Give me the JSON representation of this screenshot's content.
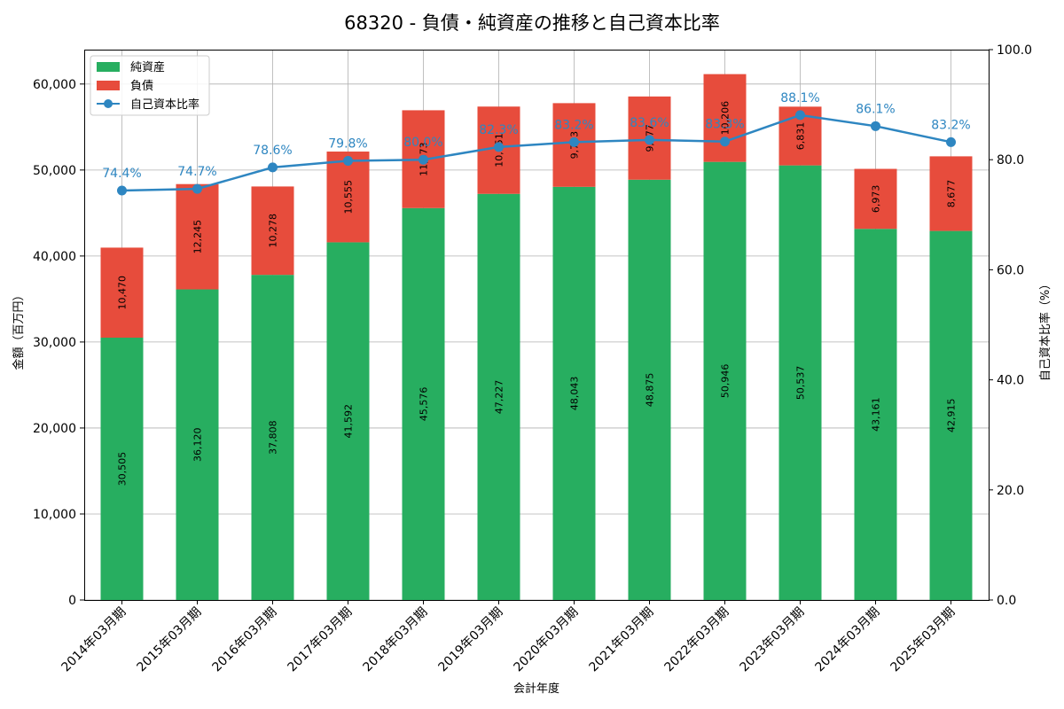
{
  "chart_data": {
    "type": "bar",
    "stacked": true,
    "title": "68320 - 負債・純資産の推移と自己資本比率",
    "xlabel": "会計年度",
    "ylabel": "金額（百万円）",
    "y2label": "自己資本比率（%）",
    "ylim": [
      0,
      64000
    ],
    "y2lim": [
      0,
      100
    ],
    "yticks": [
      0,
      10000,
      20000,
      30000,
      40000,
      50000,
      60000
    ],
    "ytick_labels": [
      "0",
      "10,000",
      "20,000",
      "30,000",
      "40,000",
      "50,000",
      "60,000"
    ],
    "y2ticks": [
      0,
      20,
      40,
      60,
      80,
      100
    ],
    "y2tick_labels": [
      "0.0",
      "20.0",
      "40.0",
      "60.0",
      "80.0",
      "100.0"
    ],
    "grid": true,
    "legend_position": "top-left",
    "categories": [
      "2014年03月期",
      "2015年03月期",
      "2016年03月期",
      "2017年03月期",
      "2018年03月期",
      "2019年03月期",
      "2020年03月期",
      "2021年03月期",
      "2022年03月期",
      "2023年03月期",
      "2024年03月期",
      "2025年03月期"
    ],
    "series": [
      {
        "name": "純資産",
        "kind": "bar",
        "color": "#27ae60",
        "values": [
          30505,
          36120,
          37808,
          41592,
          45576,
          47227,
          48043,
          48875,
          50946,
          50537,
          43161,
          42915
        ],
        "labels": [
          "30,505",
          "36,120",
          "37,808",
          "41,592",
          "45,576",
          "47,227",
          "48,043",
          "48,875",
          "50,946",
          "50,537",
          "43,161",
          "42,915"
        ]
      },
      {
        "name": "負債",
        "kind": "bar",
        "color": "#e74c3c",
        "values": [
          10470,
          12245,
          10278,
          10555,
          11373,
          10151,
          9733,
          9677,
          10206,
          6831,
          6973,
          8677
        ],
        "labels": [
          "10,470",
          "12,245",
          "10,278",
          "10,555",
          "11,373",
          "10,151",
          "9,733",
          "9,677",
          "10,206",
          "6,831",
          "6,973",
          "8,677"
        ]
      },
      {
        "name": "自己資本比率",
        "kind": "line",
        "axis": "right",
        "color": "#2e86c1",
        "values": [
          74.4,
          74.7,
          78.6,
          79.8,
          80.0,
          82.3,
          83.2,
          83.6,
          83.3,
          88.1,
          86.1,
          83.2
        ],
        "labels": [
          "74.4%",
          "74.7%",
          "78.6%",
          "79.8%",
          "80.0%",
          "82.3%",
          "83.2%",
          "83.6%",
          "83.3%",
          "88.1%",
          "86.1%",
          "83.2%"
        ]
      }
    ]
  }
}
